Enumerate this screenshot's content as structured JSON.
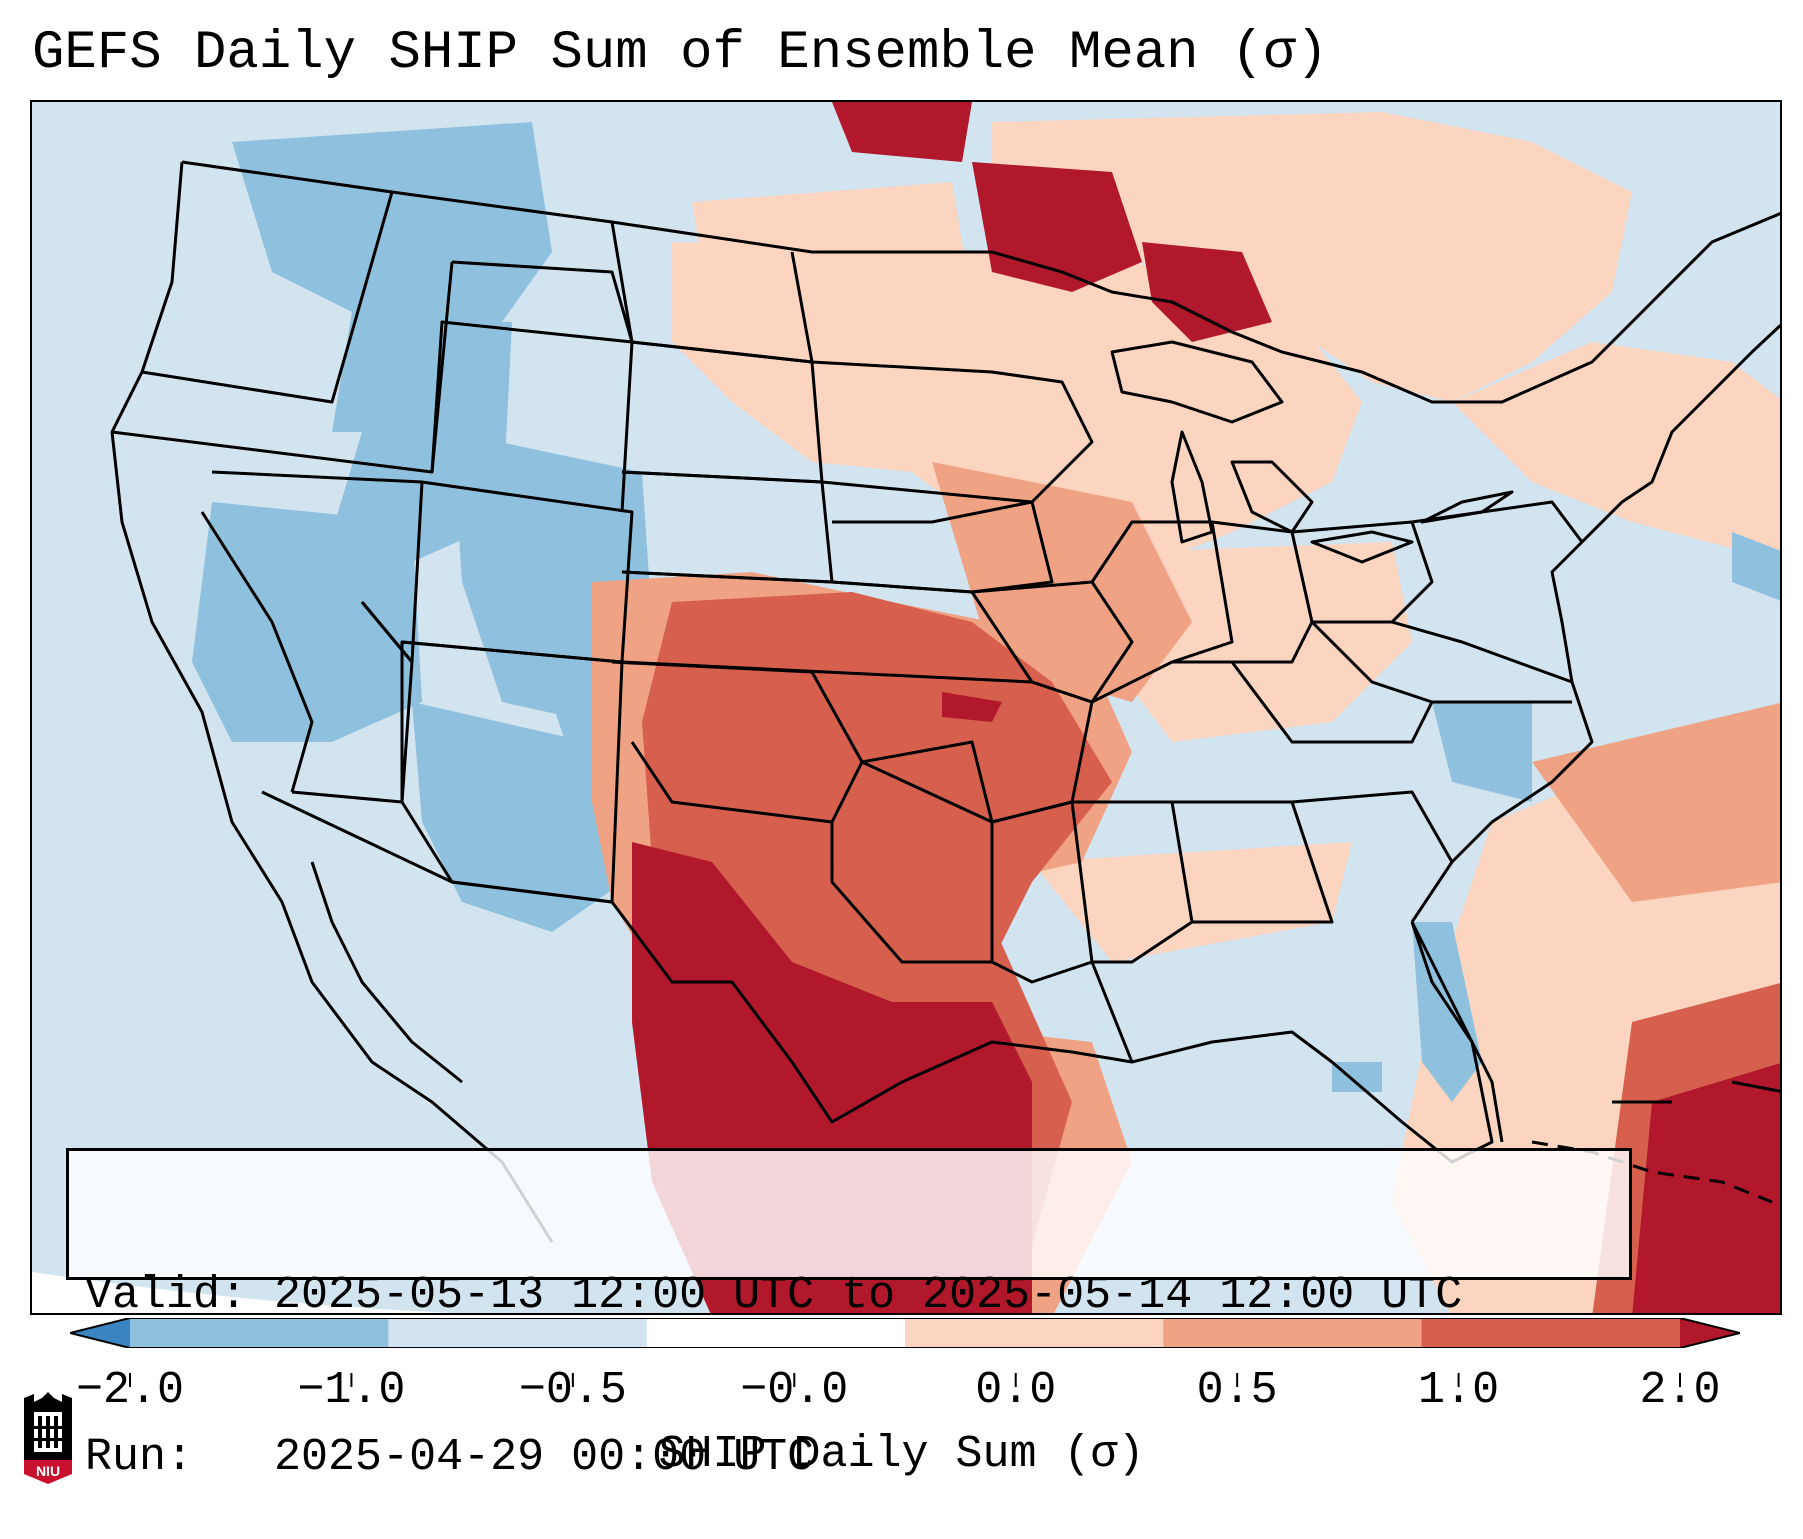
{
  "title": "GEFS Daily SHIP Sum of Ensemble Mean (σ)",
  "info": {
    "valid_label": "Valid:",
    "valid_value": "2025-05-13 12:00 UTC to 2025-05-14 12:00 UTC",
    "run_label": "Run:",
    "run_value": "2025-04-29 00:00 UTC"
  },
  "colorbar": {
    "label": "SHIP Daily Sum (σ)",
    "ticks": [
      "−2.0",
      "−1.0",
      "−0.5",
      "−0.0",
      "0.0",
      "0.5",
      "1.0",
      "2.0"
    ],
    "colors": [
      "#3a84c2",
      "#8fc1de",
      "#d2e4f0",
      "#ffffff",
      "#fbd5c0",
      "#f0a384",
      "#d6604d",
      "#b2182b"
    ],
    "extend": "both"
  },
  "logo": {
    "text": "NIU"
  },
  "palette": {
    "dark_blue": "#3a84c2",
    "mid_blue": "#8fc1de",
    "light_blue": "#d2e4f0",
    "light_red": "#fbd5c0",
    "mid_red": "#f0a384",
    "red": "#d6604d",
    "dark_red": "#b2182b"
  }
}
